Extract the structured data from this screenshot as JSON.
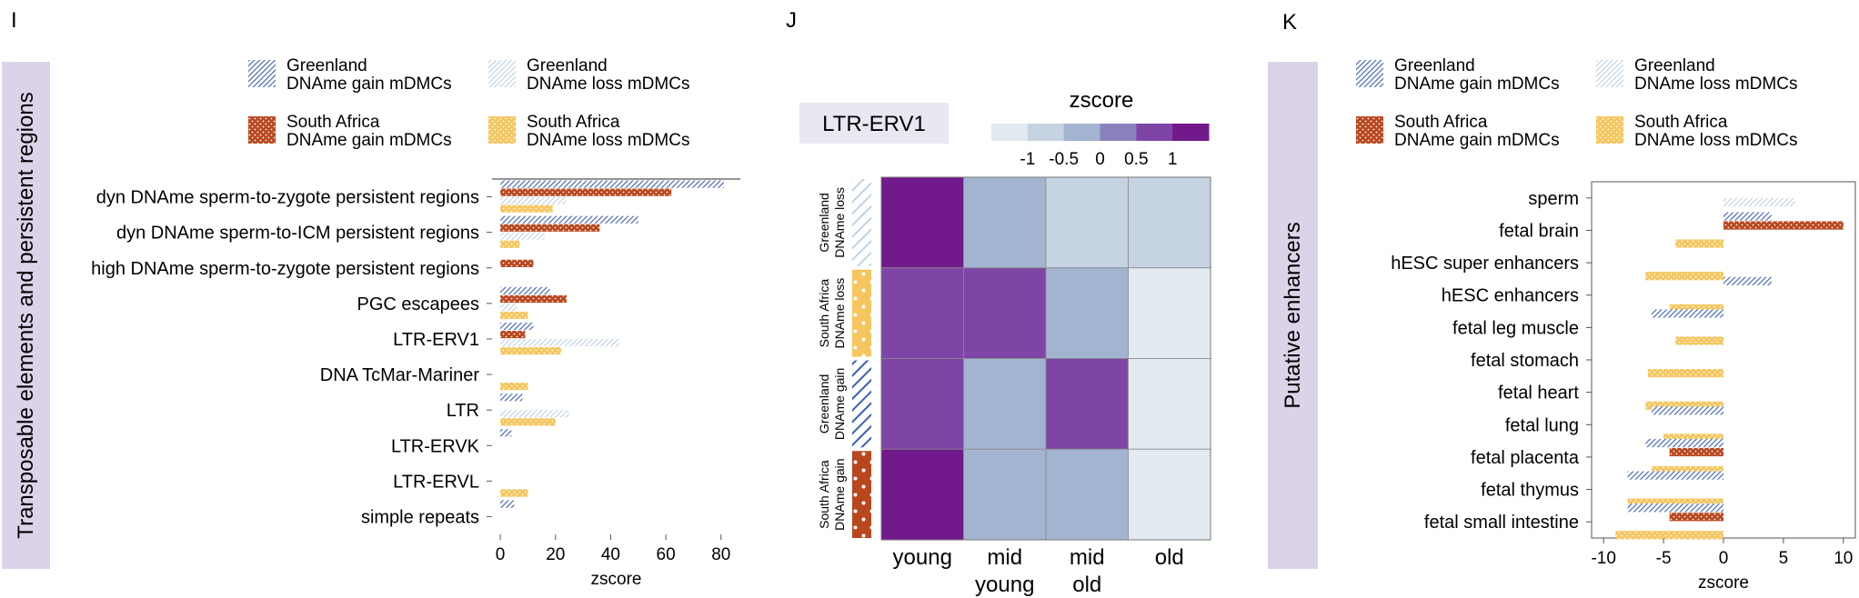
{
  "colors": {
    "gl_gain": "#3A5DB5",
    "gl_loss": "#C6D9EA",
    "sa_gain": "#B9471E",
    "sa_loss": "#F5C65E",
    "side_panel": "#DCD3E8",
    "label_box": "#E9E7F2",
    "heat_scale": [
      "#E3EAF0",
      "#C6D3E2",
      "#A2B4D0",
      "#8A82BE",
      "#7E45A6",
      "#72198C"
    ]
  },
  "legend": {
    "gl_gain": [
      "Greenland",
      "DNAme gain mDMCs"
    ],
    "gl_loss": [
      "Greenland",
      "DNAme loss mDMCs"
    ],
    "sa_gain": [
      "South Africa",
      "DNAme gain mDMCs"
    ],
    "sa_loss": [
      "South Africa",
      "DNAme loss mDMCs"
    ]
  },
  "chart_data": [
    {
      "panel": "I",
      "type": "bar",
      "orientation": "horizontal",
      "side_title": "Transposable elements and persistent regions",
      "xlabel": "zscore",
      "xticks": [
        "0",
        "20",
        "40",
        "60",
        "80"
      ],
      "xlim": [
        -3,
        87
      ],
      "categories": [
        "dyn DNAme sperm-to-zygote persistent regions",
        "dyn DNAme sperm-to-ICM persistent regions",
        "high DNAme sperm-to-zygote persistent regions",
        "PGC escapees",
        "LTR-ERV1",
        "DNA TcMar-Mariner",
        "LTR",
        "LTR-ERVK",
        "LTR-ERVL",
        "simple repeats"
      ],
      "series": [
        {
          "name": "Greenland DNAme gain mDMCs",
          "key": "gl_gain",
          "values": [
            81,
            50,
            null,
            18,
            12,
            null,
            8,
            4,
            null,
            5
          ]
        },
        {
          "name": "South Africa DNAme gain mDMCs",
          "key": "sa_gain",
          "values": [
            62,
            36,
            12,
            24,
            9,
            null,
            null,
            null,
            null,
            null
          ]
        },
        {
          "name": "Greenland DNAme loss mDMCs",
          "key": "gl_loss",
          "values": [
            24,
            16,
            null,
            6,
            43,
            null,
            25,
            null,
            null,
            null
          ]
        },
        {
          "name": "South Africa DNAme loss mDMCs",
          "key": "sa_loss",
          "values": [
            19,
            7,
            null,
            10,
            22,
            10,
            20,
            null,
            10,
            null
          ]
        }
      ]
    },
    {
      "panel": "J",
      "type": "heatmap",
      "title": "LTR-ERV1",
      "colorbar_title": "zscore",
      "colorbar_ticks": [
        "-1",
        "-0.5",
        "0",
        "0.5",
        "1"
      ],
      "columns": [
        "young",
        "mid\nyoung",
        "mid\nold",
        "old"
      ],
      "rows": [
        {
          "label": "Greenland\nDNAme loss",
          "key": "gl_loss",
          "levels": [
            5,
            2,
            1,
            1
          ]
        },
        {
          "label": "South Africa\nDNAme loss",
          "key": "sa_loss",
          "levels": [
            4,
            4,
            2,
            0
          ]
        },
        {
          "label": "Greenland\nDNAme gain",
          "key": "gl_gain",
          "levels": [
            4,
            2,
            4,
            0
          ]
        },
        {
          "label": "South Africa\nDNAme gain",
          "key": "sa_gain",
          "levels": [
            5,
            2,
            2,
            0
          ]
        }
      ]
    },
    {
      "panel": "K",
      "type": "bar",
      "orientation": "horizontal",
      "side_title": "Putative enhancers",
      "xlabel": "zscore",
      "xticks": [
        "-10",
        "-5",
        "0",
        "5",
        "10"
      ],
      "xlim": [
        -11,
        11
      ],
      "categories": [
        "sperm",
        "fetal brain",
        "hESC super enhancers",
        "hESC enhancers",
        "fetal leg muscle",
        "fetal stomach",
        "fetal heart",
        "fetal lung",
        "fetal placenta",
        "fetal thymus",
        "fetal small intestine"
      ],
      "series": [
        {
          "name": "Greenland DNAme gain mDMCs",
          "key": "gl_gain",
          "values": [
            null,
            4,
            null,
            4,
            -6,
            null,
            null,
            -6,
            -6.5,
            -8,
            -8
          ]
        },
        {
          "name": "South Africa DNAme gain mDMCs",
          "key": "sa_gain",
          "values": [
            null,
            10,
            null,
            null,
            null,
            null,
            null,
            null,
            -4.5,
            null,
            -4.5
          ]
        },
        {
          "name": "Greenland DNAme loss mDMCs",
          "key": "gl_loss",
          "values": [
            6,
            null,
            null,
            null,
            null,
            null,
            null,
            null,
            null,
            null,
            null
          ]
        },
        {
          "name": "South Africa DNAme loss mDMCs",
          "key": "sa_loss",
          "values": [
            null,
            -4,
            -6.5,
            -4.5,
            -4,
            -6.3,
            -6.5,
            -5,
            -6,
            -8,
            -9
          ]
        }
      ]
    }
  ],
  "panels": {
    "I": "I",
    "J": "J",
    "K": "K"
  }
}
